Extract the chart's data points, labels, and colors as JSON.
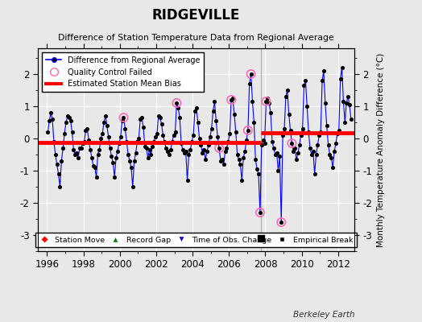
{
  "title": "RIDGEVILLE",
  "subtitle": "Difference of Station Temperature Data from Regional Average",
  "ylabel": "Monthly Temperature Anomaly Difference (°C)",
  "xlabel_ticks": [
    1996,
    1998,
    2000,
    2002,
    2004,
    2006,
    2008,
    2010,
    2012
  ],
  "xlim": [
    1995.5,
    2012.9
  ],
  "ylim": [
    -3.5,
    2.8
  ],
  "yticks": [
    -3,
    -2,
    -1,
    0,
    1,
    2
  ],
  "background_color": "#e8e8e8",
  "plot_bg_color": "#e8e8e8",
  "grid_color": "#ffffff",
  "line_color": "#0000ff",
  "marker_color": "#000000",
  "bias1_y": -0.13,
  "bias1_xstart": 1995.5,
  "bias1_xend": 2007.75,
  "bias2_y": 0.18,
  "bias2_xstart": 2007.75,
  "bias2_xend": 2012.9,
  "break_x": 2007.75,
  "break_y": -3.1,
  "watermark": "Berkeley Earth",
  "series": [
    [
      1996.042,
      0.2
    ],
    [
      1996.125,
      0.55
    ],
    [
      1996.208,
      0.8
    ],
    [
      1996.292,
      0.6
    ],
    [
      1996.375,
      -0.1
    ],
    [
      1996.458,
      -0.5
    ],
    [
      1996.542,
      -0.8
    ],
    [
      1996.625,
      -1.1
    ],
    [
      1996.708,
      -1.5
    ],
    [
      1996.792,
      -0.7
    ],
    [
      1996.875,
      -0.3
    ],
    [
      1996.958,
      0.15
    ],
    [
      1997.042,
      0.5
    ],
    [
      1997.125,
      0.7
    ],
    [
      1997.208,
      0.65
    ],
    [
      1997.292,
      0.55
    ],
    [
      1997.375,
      0.2
    ],
    [
      1997.458,
      -0.35
    ],
    [
      1997.542,
      -0.5
    ],
    [
      1997.625,
      -0.45
    ],
    [
      1997.708,
      -0.6
    ],
    [
      1997.792,
      -0.3
    ],
    [
      1997.875,
      -0.3
    ],
    [
      1997.958,
      -0.15
    ],
    [
      1998.042,
      -0.1
    ],
    [
      1998.125,
      0.25
    ],
    [
      1998.208,
      0.3
    ],
    [
      1998.292,
      -0.05
    ],
    [
      1998.375,
      -0.35
    ],
    [
      1998.458,
      -0.6
    ],
    [
      1998.542,
      -0.85
    ],
    [
      1998.625,
      -0.9
    ],
    [
      1998.708,
      -1.2
    ],
    [
      1998.792,
      -0.5
    ],
    [
      1998.875,
      -0.35
    ],
    [
      1998.958,
      0.0
    ],
    [
      1999.042,
      0.15
    ],
    [
      1999.125,
      0.5
    ],
    [
      1999.208,
      0.7
    ],
    [
      1999.292,
      0.4
    ],
    [
      1999.375,
      0.05
    ],
    [
      1999.458,
      -0.3
    ],
    [
      1999.542,
      -0.55
    ],
    [
      1999.625,
      -0.75
    ],
    [
      1999.708,
      -1.2
    ],
    [
      1999.792,
      -0.6
    ],
    [
      1999.875,
      -0.4
    ],
    [
      1999.958,
      -0.15
    ],
    [
      2000.042,
      0.05
    ],
    [
      2000.125,
      0.55
    ],
    [
      2000.208,
      0.65
    ],
    [
      2000.292,
      0.3
    ],
    [
      2000.375,
      -0.1
    ],
    [
      2000.458,
      -0.5
    ],
    [
      2000.542,
      -0.7
    ],
    [
      2000.625,
      -0.9
    ],
    [
      2000.708,
      -1.5
    ],
    [
      2000.792,
      -0.7
    ],
    [
      2000.875,
      -0.45
    ],
    [
      2000.958,
      -0.1
    ],
    [
      2001.042,
      0.0
    ],
    [
      2001.125,
      0.6
    ],
    [
      2001.208,
      0.65
    ],
    [
      2001.292,
      0.35
    ],
    [
      2001.375,
      -0.25
    ],
    [
      2001.458,
      -0.3
    ],
    [
      2001.542,
      -0.6
    ],
    [
      2001.625,
      -0.35
    ],
    [
      2001.708,
      -0.5
    ],
    [
      2001.792,
      -0.25
    ],
    [
      2001.875,
      -0.1
    ],
    [
      2001.958,
      0.05
    ],
    [
      2002.042,
      0.15
    ],
    [
      2002.125,
      0.7
    ],
    [
      2002.208,
      0.65
    ],
    [
      2002.292,
      0.45
    ],
    [
      2002.375,
      0.1
    ],
    [
      2002.458,
      -0.1
    ],
    [
      2002.542,
      -0.3
    ],
    [
      2002.625,
      -0.4
    ],
    [
      2002.708,
      -0.5
    ],
    [
      2002.792,
      -0.35
    ],
    [
      2002.875,
      -0.1
    ],
    [
      2002.958,
      0.1
    ],
    [
      2003.042,
      0.2
    ],
    [
      2003.125,
      1.1
    ],
    [
      2003.208,
      0.95
    ],
    [
      2003.292,
      0.65
    ],
    [
      2003.375,
      -0.15
    ],
    [
      2003.458,
      -0.35
    ],
    [
      2003.542,
      -0.45
    ],
    [
      2003.625,
      -0.4
    ],
    [
      2003.708,
      -1.3
    ],
    [
      2003.792,
      -0.5
    ],
    [
      2003.875,
      -0.35
    ],
    [
      2003.958,
      -0.1
    ],
    [
      2004.042,
      0.1
    ],
    [
      2004.125,
      0.85
    ],
    [
      2004.208,
      0.95
    ],
    [
      2004.292,
      0.5
    ],
    [
      2004.375,
      0.0
    ],
    [
      2004.458,
      -0.2
    ],
    [
      2004.542,
      -0.45
    ],
    [
      2004.625,
      -0.35
    ],
    [
      2004.708,
      -0.65
    ],
    [
      2004.792,
      -0.4
    ],
    [
      2004.875,
      -0.2
    ],
    [
      2004.958,
      0.05
    ],
    [
      2005.042,
      0.3
    ],
    [
      2005.125,
      0.85
    ],
    [
      2005.208,
      1.15
    ],
    [
      2005.292,
      0.55
    ],
    [
      2005.375,
      0.05
    ],
    [
      2005.458,
      -0.3
    ],
    [
      2005.542,
      -0.7
    ],
    [
      2005.625,
      -0.65
    ],
    [
      2005.708,
      -0.8
    ],
    [
      2005.792,
      -0.4
    ],
    [
      2005.875,
      -0.3
    ],
    [
      2005.958,
      -0.1
    ],
    [
      2006.042,
      0.15
    ],
    [
      2006.125,
      1.2
    ],
    [
      2006.208,
      1.25
    ],
    [
      2006.292,
      0.75
    ],
    [
      2006.375,
      0.2
    ],
    [
      2006.458,
      -0.5
    ],
    [
      2006.542,
      -0.65
    ],
    [
      2006.625,
      -0.8
    ],
    [
      2006.708,
      -1.3
    ],
    [
      2006.792,
      -0.6
    ],
    [
      2006.875,
      -0.4
    ],
    [
      2006.958,
      -0.05
    ],
    [
      2007.042,
      0.25
    ],
    [
      2007.125,
      1.7
    ],
    [
      2007.208,
      2.0
    ],
    [
      2007.292,
      1.15
    ],
    [
      2007.375,
      0.5
    ],
    [
      2007.458,
      -0.65
    ],
    [
      2007.542,
      -0.95
    ],
    [
      2007.625,
      -1.1
    ],
    [
      2007.708,
      -2.3
    ],
    [
      2007.792,
      -0.2
    ],
    [
      2007.875,
      -0.05
    ],
    [
      2007.958,
      -0.15
    ],
    [
      2008.042,
      1.15
    ],
    [
      2008.125,
      1.25
    ],
    [
      2008.208,
      1.1
    ],
    [
      2008.292,
      0.8
    ],
    [
      2008.375,
      -0.1
    ],
    [
      2008.458,
      -0.3
    ],
    [
      2008.542,
      -0.5
    ],
    [
      2008.625,
      -0.45
    ],
    [
      2008.708,
      -1.0
    ],
    [
      2008.792,
      -0.55
    ],
    [
      2008.875,
      -2.6
    ],
    [
      2008.958,
      0.1
    ],
    [
      2009.042,
      0.3
    ],
    [
      2009.125,
      1.3
    ],
    [
      2009.208,
      1.5
    ],
    [
      2009.292,
      0.75
    ],
    [
      2009.375,
      0.25
    ],
    [
      2009.458,
      -0.15
    ],
    [
      2009.542,
      -0.4
    ],
    [
      2009.625,
      -0.3
    ],
    [
      2009.708,
      -0.65
    ],
    [
      2009.792,
      -0.45
    ],
    [
      2009.875,
      -0.2
    ],
    [
      2009.958,
      0.1
    ],
    [
      2010.042,
      0.3
    ],
    [
      2010.125,
      1.65
    ],
    [
      2010.208,
      1.8
    ],
    [
      2010.292,
      1.0
    ],
    [
      2010.375,
      0.2
    ],
    [
      2010.458,
      -0.3
    ],
    [
      2010.542,
      -0.5
    ],
    [
      2010.625,
      -0.4
    ],
    [
      2010.708,
      -1.1
    ],
    [
      2010.792,
      -0.5
    ],
    [
      2010.875,
      -0.2
    ],
    [
      2010.958,
      0.1
    ],
    [
      2011.042,
      0.2
    ],
    [
      2011.125,
      1.8
    ],
    [
      2011.208,
      2.1
    ],
    [
      2011.292,
      1.1
    ],
    [
      2011.375,
      0.4
    ],
    [
      2011.458,
      -0.2
    ],
    [
      2011.542,
      -0.5
    ],
    [
      2011.625,
      -0.6
    ],
    [
      2011.708,
      -0.9
    ],
    [
      2011.792,
      -0.4
    ],
    [
      2011.875,
      -0.15
    ],
    [
      2011.958,
      0.15
    ],
    [
      2012.042,
      0.25
    ],
    [
      2012.125,
      1.85
    ],
    [
      2012.208,
      2.2
    ],
    [
      2012.292,
      1.15
    ],
    [
      2012.375,
      0.5
    ],
    [
      2012.458,
      1.1
    ],
    [
      2012.542,
      1.3
    ],
    [
      2012.625,
      1.05
    ],
    [
      2012.708,
      0.6
    ]
  ],
  "qc_failed": [
    [
      2000.208,
      0.65
    ],
    [
      2003.125,
      1.1
    ],
    [
      2005.458,
      -0.3
    ],
    [
      2006.125,
      1.2
    ],
    [
      2007.042,
      0.25
    ],
    [
      2007.208,
      2.0
    ],
    [
      2007.708,
      -2.3
    ],
    [
      2008.042,
      1.15
    ],
    [
      2008.875,
      -2.6
    ],
    [
      2009.458,
      -0.15
    ]
  ],
  "vertical_line_x": 2007.75
}
